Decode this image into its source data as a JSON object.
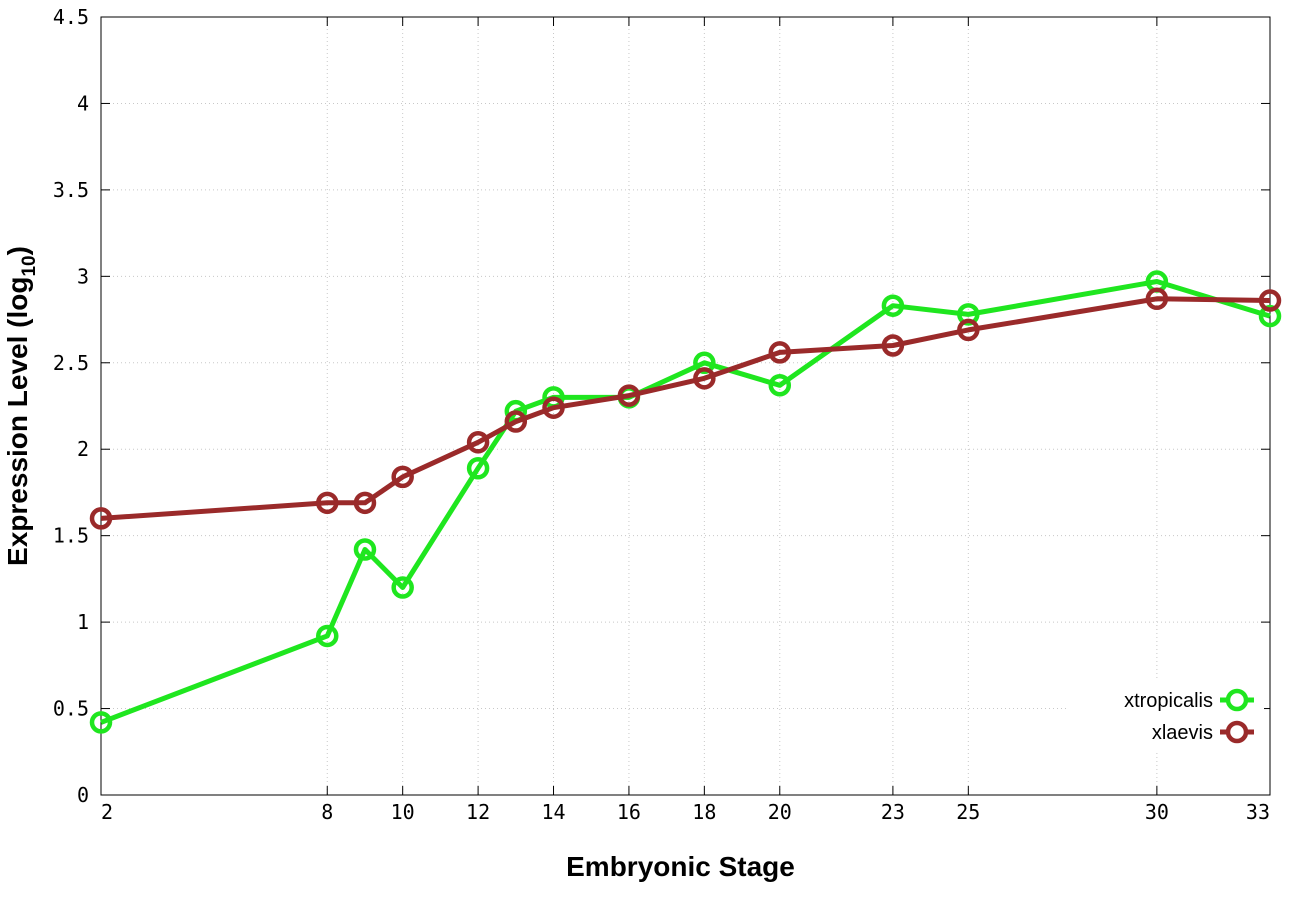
{
  "chart_data": {
    "type": "line",
    "title": "",
    "xlabel": "Embryonic Stage",
    "ylabel": {
      "prefix": "Expression Level (log",
      "subscript": "10",
      "suffix": ")"
    },
    "ylim": [
      0,
      4.5
    ],
    "yticks": [
      "0",
      "0.5",
      "1",
      "1.5",
      "2",
      "2.5",
      "3",
      "3.5",
      "4",
      "4.5"
    ],
    "x_categories": [
      "2",
      "8",
      "9",
      "10",
      "12",
      "13",
      "14",
      "16",
      "18",
      "20",
      "23",
      "25",
      "30",
      "33"
    ],
    "x_tick_labels": [
      "2",
      "8",
      "10",
      "12",
      "14",
      "16",
      "18",
      "20",
      "23",
      "25",
      "30",
      "33"
    ],
    "grid": true,
    "legend_placement": "bottom-right",
    "series": [
      {
        "name": "xtropicalis",
        "color": "#1fe61f",
        "marker": "circle",
        "values": [
          0.42,
          0.92,
          1.42,
          1.2,
          1.89,
          2.22,
          2.3,
          2.3,
          2.5,
          2.37,
          2.83,
          2.78,
          2.97,
          2.77
        ]
      },
      {
        "name": "xlaevis",
        "color": "#9a2a2a",
        "marker": "circle",
        "values": [
          1.6,
          1.69,
          1.69,
          1.84,
          2.04,
          2.16,
          2.24,
          2.31,
          2.41,
          2.56,
          2.6,
          2.69,
          2.87,
          2.86
        ]
      }
    ]
  }
}
